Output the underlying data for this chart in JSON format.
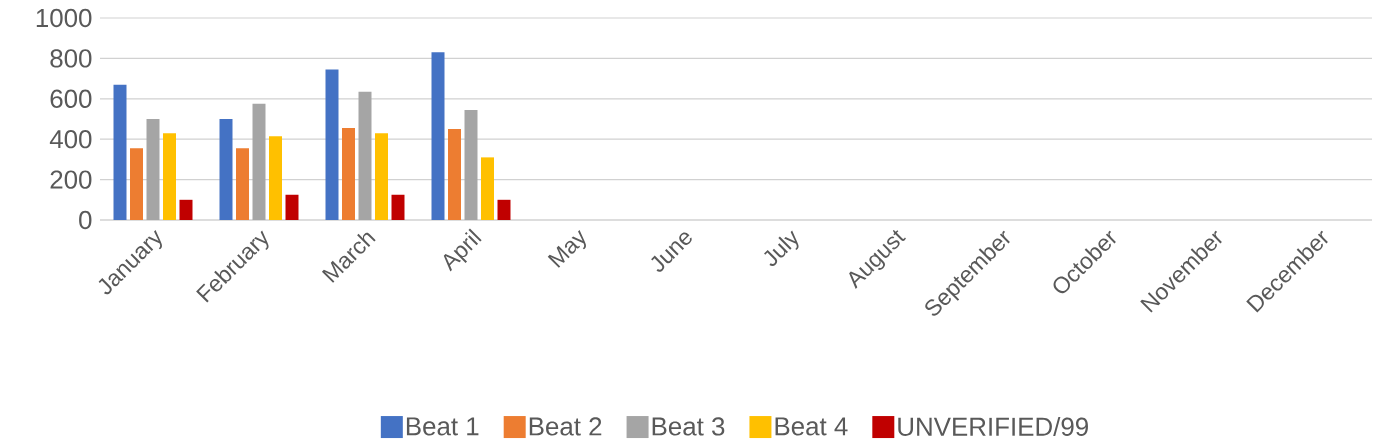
{
  "chart_data": {
    "type": "bar",
    "categories": [
      "January",
      "February",
      "March",
      "April",
      "May",
      "June",
      "July",
      "August",
      "September",
      "October",
      "November",
      "December"
    ],
    "series": [
      {
        "name": "Beat 1",
        "color": "#4472c4",
        "values": [
          670,
          500,
          745,
          830,
          null,
          null,
          null,
          null,
          null,
          null,
          null,
          null
        ]
      },
      {
        "name": "Beat 2",
        "color": "#ed7d31",
        "values": [
          355,
          355,
          455,
          450,
          null,
          null,
          null,
          null,
          null,
          null,
          null,
          null
        ]
      },
      {
        "name": "Beat 3",
        "color": "#a5a5a5",
        "values": [
          500,
          575,
          635,
          545,
          null,
          null,
          null,
          null,
          null,
          null,
          null,
          null
        ]
      },
      {
        "name": "Beat 4",
        "color": "#ffc000",
        "values": [
          430,
          415,
          430,
          310,
          null,
          null,
          null,
          null,
          null,
          null,
          null,
          null
        ]
      },
      {
        "name": "UNVERIFIED/99",
        "color": "#c00000",
        "values": [
          100,
          125,
          125,
          100,
          null,
          null,
          null,
          null,
          null,
          null,
          null,
          null
        ]
      }
    ],
    "ylim": [
      0,
      1000
    ],
    "yticks": [
      0,
      200,
      400,
      600,
      800,
      1000
    ],
    "grid": "y",
    "legend": "bottom"
  }
}
